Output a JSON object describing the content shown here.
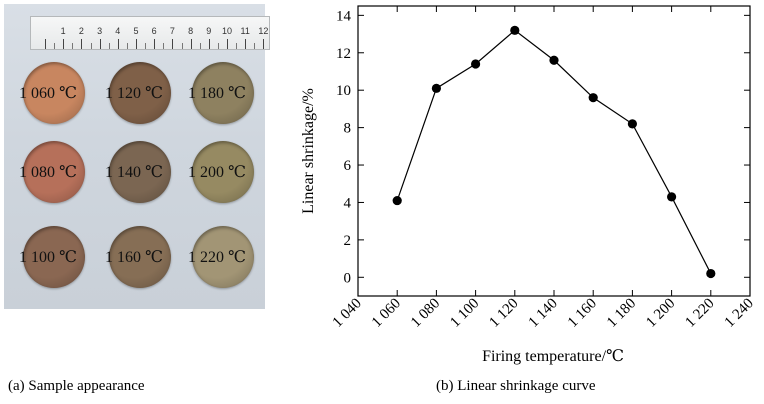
{
  "panel_a": {
    "caption": "(a) Sample appearance",
    "ruler_numbers": [
      "1",
      "2",
      "3",
      "4",
      "5",
      "6",
      "7",
      "8",
      "9",
      "10",
      "11",
      "12"
    ],
    "samples": [
      {
        "label": "1 060 ℃",
        "color": "#c88660"
      },
      {
        "label": "1 120 ℃",
        "color": "#7f6048"
      },
      {
        "label": "1 180 ℃",
        "color": "#8e8160"
      },
      {
        "label": "1 080 ℃",
        "color": "#b6705a"
      },
      {
        "label": "1 140 ℃",
        "color": "#7b6652"
      },
      {
        "label": "1 200 ℃",
        "color": "#968a62"
      },
      {
        "label": "1 100 ℃",
        "color": "#8a6752"
      },
      {
        "label": "1 160 ℃",
        "color": "#866e55"
      },
      {
        "label": "1 220 ℃",
        "color": "#a29575"
      }
    ]
  },
  "panel_b": {
    "caption": "(b) Linear shrinkage curve"
  },
  "chart_data": {
    "type": "line",
    "xlabel": "Firing temperature/℃",
    "ylabel": "Linear shrinkage/%",
    "xlim": [
      1040,
      1240
    ],
    "ylim": [
      -1,
      14.5
    ],
    "x_ticks": [
      1040,
      1060,
      1080,
      1100,
      1120,
      1140,
      1160,
      1180,
      1200,
      1220,
      1240
    ],
    "x_tick_labels": [
      "1 040",
      "1 060",
      "1 080",
      "1 100",
      "1 120",
      "1 140",
      "1 160",
      "1 180",
      "1 200",
      "1 220",
      "1 240"
    ],
    "y_ticks": [
      0,
      2,
      4,
      6,
      8,
      10,
      12,
      14
    ],
    "y_tick_labels": [
      "0",
      "2",
      "4",
      "6",
      "8",
      "10",
      "12",
      "14"
    ],
    "grid": false,
    "series": [
      {
        "x": [
          1060,
          1080,
          1100,
          1120,
          1140,
          1160,
          1180,
          1200,
          1220
        ],
        "y": [
          4.1,
          10.1,
          11.4,
          13.2,
          11.6,
          9.6,
          8.2,
          4.3,
          0.2
        ],
        "color": "#000000",
        "marker": "circle"
      }
    ]
  }
}
